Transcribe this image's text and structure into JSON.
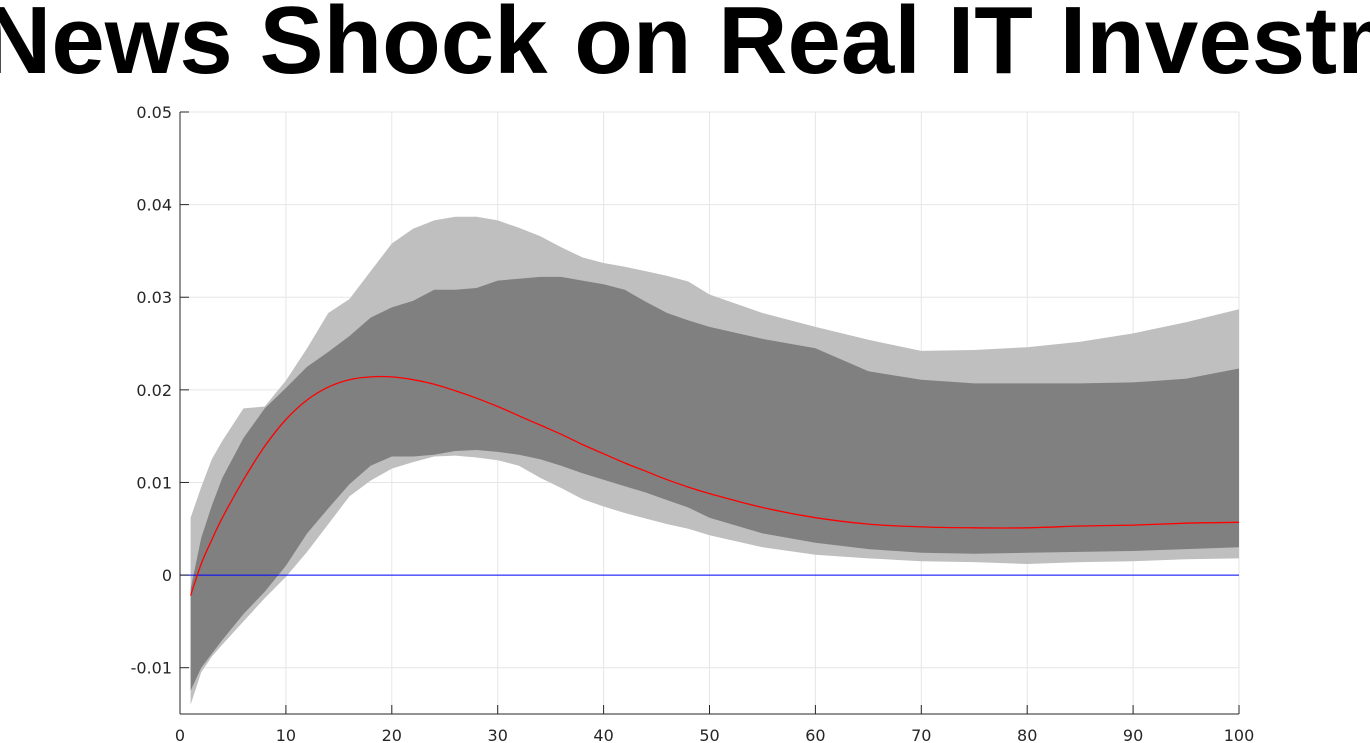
{
  "chart_data": {
    "type": "area",
    "title": "News Shock on Real IT Investment",
    "xlabel": "",
    "ylabel": "",
    "xlim": [
      0,
      100
    ],
    "ylim": [
      -0.015,
      0.05
    ],
    "xticks": [
      0,
      10,
      20,
      30,
      40,
      50,
      60,
      70,
      80,
      90,
      100
    ],
    "xtick_labels": [
      "0",
      "10",
      "20",
      "30",
      "40",
      "50",
      "60",
      "70",
      "80",
      "90",
      "100"
    ],
    "yticks": [
      -0.01,
      0,
      0.01,
      0.02,
      0.03,
      0.04,
      0.05
    ],
    "ytick_labels": [
      "-0.01",
      "0",
      "0.01",
      "0.02",
      "0.03",
      "0.04",
      "0.05"
    ],
    "grid": true,
    "colors": {
      "outer_band": "#bfbfbf",
      "inner_band": "#808080",
      "response_line": "#ff0000",
      "zero_line": "#0000ff",
      "grid": "#e6e6e6",
      "axis": "#262626"
    },
    "outer_band": {
      "x": [
        1,
        2,
        3,
        4,
        6,
        8,
        10,
        12,
        14,
        16,
        18,
        20,
        22,
        24,
        26,
        28,
        30,
        32,
        34,
        36,
        38,
        40,
        42,
        44,
        46,
        48,
        50,
        55,
        60,
        65,
        70,
        75,
        80,
        85,
        90,
        95,
        100
      ],
      "upper": [
        0.0062,
        0.0095,
        0.0125,
        0.0145,
        0.018,
        0.0182,
        0.021,
        0.0245,
        0.0283,
        0.0298,
        0.0328,
        0.0358,
        0.0374,
        0.0383,
        0.0387,
        0.0387,
        0.0383,
        0.0375,
        0.0366,
        0.0354,
        0.0343,
        0.0337,
        0.0333,
        0.0328,
        0.0323,
        0.0317,
        0.0303,
        0.0283,
        0.0268,
        0.0254,
        0.0242,
        0.0243,
        0.0246,
        0.0252,
        0.0261,
        0.0273,
        0.0287
      ],
      "lower": [
        -0.014,
        -0.0105,
        -0.0088,
        -0.0075,
        -0.005,
        -0.0025,
        -0.0002,
        0.0025,
        0.0055,
        0.0085,
        0.0102,
        0.0115,
        0.0122,
        0.0128,
        0.0129,
        0.0127,
        0.0124,
        0.0118,
        0.0105,
        0.0094,
        0.0082,
        0.0074,
        0.0067,
        0.0061,
        0.0055,
        0.005,
        0.0043,
        0.003,
        0.0022,
        0.0018,
        0.0015,
        0.0014,
        0.0012,
        0.0014,
        0.0015,
        0.0017,
        0.0018
      ]
    },
    "inner_band": {
      "x": [
        1,
        2,
        3,
        4,
        6,
        8,
        10,
        12,
        14,
        16,
        18,
        20,
        22,
        24,
        26,
        28,
        30,
        32,
        34,
        36,
        38,
        40,
        42,
        44,
        46,
        48,
        50,
        55,
        60,
        65,
        70,
        75,
        80,
        85,
        90,
        95,
        100
      ],
      "upper": [
        -0.0015,
        0.004,
        0.0075,
        0.0105,
        0.0148,
        0.018,
        0.0202,
        0.0225,
        0.0241,
        0.0258,
        0.0278,
        0.0289,
        0.0296,
        0.0308,
        0.0308,
        0.031,
        0.0318,
        0.032,
        0.0322,
        0.0322,
        0.0318,
        0.0314,
        0.0308,
        0.0295,
        0.0283,
        0.0275,
        0.0268,
        0.0255,
        0.0245,
        0.022,
        0.0211,
        0.0207,
        0.0207,
        0.0207,
        0.0208,
        0.0212,
        0.0223
      ],
      "lower": [
        -0.0125,
        -0.01,
        -0.0085,
        -0.007,
        -0.0042,
        -0.0018,
        0.001,
        0.0045,
        0.0072,
        0.0098,
        0.0118,
        0.0128,
        0.0128,
        0.013,
        0.0134,
        0.0135,
        0.0133,
        0.013,
        0.0125,
        0.0118,
        0.011,
        0.0103,
        0.0096,
        0.0089,
        0.0081,
        0.0073,
        0.0062,
        0.0045,
        0.0035,
        0.0028,
        0.0024,
        0.0023,
        0.0024,
        0.0025,
        0.0026,
        0.0028,
        0.003
      ]
    },
    "series": [
      {
        "x": [
          1,
          2,
          3,
          4,
          6,
          8,
          10,
          12,
          14,
          16,
          18,
          20,
          22,
          24,
          26,
          28,
          30,
          32,
          34,
          36,
          38,
          40,
          42,
          44,
          46,
          48,
          50,
          55,
          60,
          65,
          70,
          75,
          80,
          85,
          90,
          95,
          100
        ],
        "values": [
          -0.0022,
          0.0012,
          0.0038,
          0.0062,
          0.0103,
          0.0139,
          0.0168,
          0.0189,
          0.0203,
          0.0211,
          0.0214,
          0.0214,
          0.0211,
          0.0206,
          0.0199,
          0.0191,
          0.0182,
          0.0172,
          0.0162,
          0.0152,
          0.0141,
          0.0131,
          0.0121,
          0.0112,
          0.0103,
          0.0095,
          0.0088,
          0.0073,
          0.0062,
          0.0055,
          0.0052,
          0.0051,
          0.0051,
          0.0053,
          0.0054,
          0.0056,
          0.0057
        ]
      },
      {
        "x": [
          0,
          100
        ],
        "values": [
          0,
          0
        ]
      }
    ]
  }
}
